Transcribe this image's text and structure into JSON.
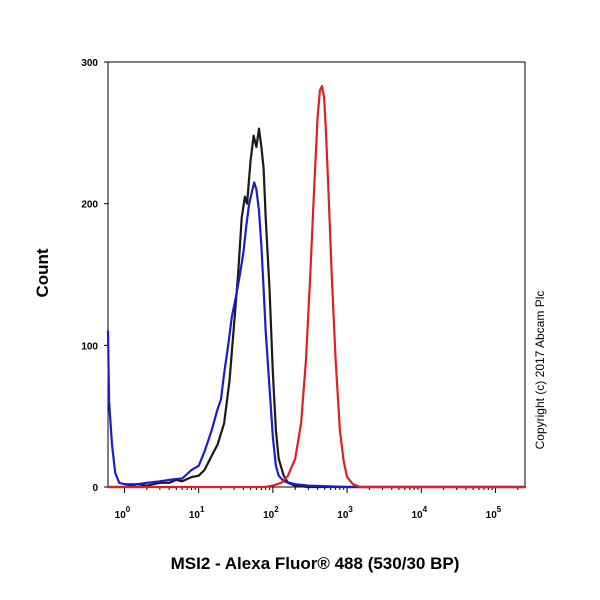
{
  "chart_data": {
    "type": "line",
    "title": "",
    "xlabel": "MSI2 - Alexa Fluor® 488 (530/30 BP)",
    "ylabel": "Count",
    "x_scale": "log",
    "xlim": [
      0.6,
      250000
    ],
    "ylim": [
      0,
      300
    ],
    "x_ticks": [
      {
        "base": "10",
        "exp": "0",
        "value": 1
      },
      {
        "base": "10",
        "exp": "1",
        "value": 10
      },
      {
        "base": "10",
        "exp": "2",
        "value": 100
      },
      {
        "base": "10",
        "exp": "3",
        "value": 1000
      },
      {
        "base": "10",
        "exp": "4",
        "value": 10000
      },
      {
        "base": "10",
        "exp": "5",
        "value": 100000
      }
    ],
    "y_ticks": [
      0,
      100,
      200,
      300
    ],
    "grid": false,
    "annotation": "Copyright (c) 2017 Abcam Plc",
    "series": [
      {
        "color": "#1a1a1a",
        "points": [
          [
            0.6,
            0
          ],
          [
            1.0,
            0
          ],
          [
            1.5,
            2
          ],
          [
            2.0,
            1
          ],
          [
            3.0,
            3
          ],
          [
            4.0,
            3
          ],
          [
            5.0,
            5
          ],
          [
            6.0,
            4
          ],
          [
            8.0,
            7
          ],
          [
            10,
            8
          ],
          [
            12,
            12
          ],
          [
            15,
            22
          ],
          [
            18,
            30
          ],
          [
            22,
            45
          ],
          [
            26,
            75
          ],
          [
            30,
            115
          ],
          [
            34,
            150
          ],
          [
            38,
            190
          ],
          [
            42,
            205
          ],
          [
            45,
            200
          ],
          [
            50,
            230
          ],
          [
            55,
            248
          ],
          [
            60,
            240
          ],
          [
            65,
            253
          ],
          [
            70,
            240
          ],
          [
            75,
            225
          ],
          [
            80,
            190
          ],
          [
            90,
            140
          ],
          [
            100,
            80
          ],
          [
            110,
            40
          ],
          [
            120,
            20
          ],
          [
            140,
            8
          ],
          [
            160,
            3
          ],
          [
            200,
            1
          ],
          [
            300,
            0
          ],
          [
            1000,
            0
          ],
          [
            250000,
            0
          ]
        ]
      },
      {
        "color": "#1c1ccf",
        "points": [
          [
            0.6,
            110
          ],
          [
            0.62,
            60
          ],
          [
            0.68,
            30
          ],
          [
            0.75,
            10
          ],
          [
            0.85,
            3
          ],
          [
            1.0,
            2
          ],
          [
            1.5,
            2
          ],
          [
            2.0,
            3
          ],
          [
            3.0,
            4
          ],
          [
            4.0,
            5
          ],
          [
            6.0,
            6
          ],
          [
            8.0,
            12
          ],
          [
            10,
            15
          ],
          [
            12,
            25
          ],
          [
            15,
            40
          ],
          [
            18,
            55
          ],
          [
            20,
            62
          ],
          [
            22,
            80
          ],
          [
            25,
            100
          ],
          [
            28,
            120
          ],
          [
            32,
            135
          ],
          [
            36,
            150
          ],
          [
            40,
            165
          ],
          [
            44,
            185
          ],
          [
            48,
            200
          ],
          [
            52,
            208
          ],
          [
            56,
            215
          ],
          [
            60,
            210
          ],
          [
            65,
            195
          ],
          [
            70,
            170
          ],
          [
            75,
            140
          ],
          [
            80,
            110
          ],
          [
            90,
            70
          ],
          [
            100,
            35
          ],
          [
            110,
            15
          ],
          [
            120,
            8
          ],
          [
            140,
            4
          ],
          [
            200,
            2
          ],
          [
            300,
            1
          ],
          [
            1000,
            0
          ],
          [
            250000,
            0
          ]
        ]
      },
      {
        "color": "#e02020",
        "points": [
          [
            0.6,
            0
          ],
          [
            60,
            0
          ],
          [
            80,
            0
          ],
          [
            100,
            1
          ],
          [
            130,
            3
          ],
          [
            160,
            8
          ],
          [
            200,
            20
          ],
          [
            240,
            45
          ],
          [
            280,
            90
          ],
          [
            320,
            150
          ],
          [
            360,
            210
          ],
          [
            400,
            260
          ],
          [
            430,
            280
          ],
          [
            460,
            283
          ],
          [
            490,
            275
          ],
          [
            520,
            250
          ],
          [
            560,
            210
          ],
          [
            620,
            150
          ],
          [
            700,
            90
          ],
          [
            800,
            40
          ],
          [
            900,
            18
          ],
          [
            1000,
            7
          ],
          [
            1200,
            2
          ],
          [
            1500,
            0
          ],
          [
            3000,
            0
          ],
          [
            250000,
            0
          ]
        ]
      }
    ]
  }
}
